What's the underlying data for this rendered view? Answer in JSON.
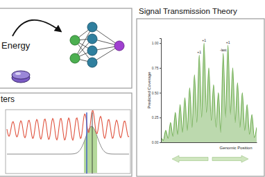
{
  "panels": [
    {
      "label": "Energy"
    },
    {
      "title": "ters"
    }
  ],
  "chart_data": {
    "type": "area",
    "title": "Signal Transmission Theory",
    "y_label": "Predicted Coverage",
    "x_label": "Genomic Position",
    "x": [
      0,
      5,
      10,
      15,
      20,
      25,
      30,
      35,
      40,
      45,
      50,
      55,
      60,
      65,
      70,
      75,
      80,
      85,
      90,
      95,
      100,
      105,
      110,
      115,
      120,
      125,
      130,
      135,
      140,
      145,
      150,
      155,
      160,
      165,
      170,
      175,
      180,
      185,
      190,
      195,
      200
    ],
    "values": [
      0.05,
      0.02,
      0.12,
      0.04,
      0.2,
      0.06,
      0.3,
      0.08,
      0.38,
      0.1,
      0.45,
      0.12,
      0.55,
      0.15,
      0.68,
      0.2,
      0.88,
      0.25,
      1.0,
      0.3,
      0.75,
      0.22,
      0.58,
      0.15,
      0.5,
      0.1,
      0.9,
      0.25,
      0.98,
      0.28,
      0.75,
      0.2,
      0.6,
      0.15,
      0.5,
      0.12,
      0.38,
      0.08,
      0.28,
      0.05,
      0.15
    ],
    "color": "#6aaa4b",
    "xlim": [
      0,
      200
    ],
    "ylim": [
      0,
      1.05
    ],
    "yticks": [
      {
        "value": 0,
        "label": "0.00"
      },
      {
        "value": 0.25,
        "label": "0.25"
      },
      {
        "value": 0.5,
        "label": "0.50"
      },
      {
        "value": 0.75,
        "label": "0.75"
      },
      {
        "value": 1,
        "label": "1.00"
      }
    ],
    "tick_labels": "y",
    "grid": false,
    "annotations": [
      {
        "text": "+1",
        "x": 80,
        "y": 0.88
      },
      {
        "text": "+1",
        "x": 90,
        "y": 1.0
      },
      {
        "text": "-last",
        "x": 130,
        "y": 0.9
      },
      {
        "text": "+1",
        "x": 140,
        "y": 0.98
      }
    ]
  }
}
